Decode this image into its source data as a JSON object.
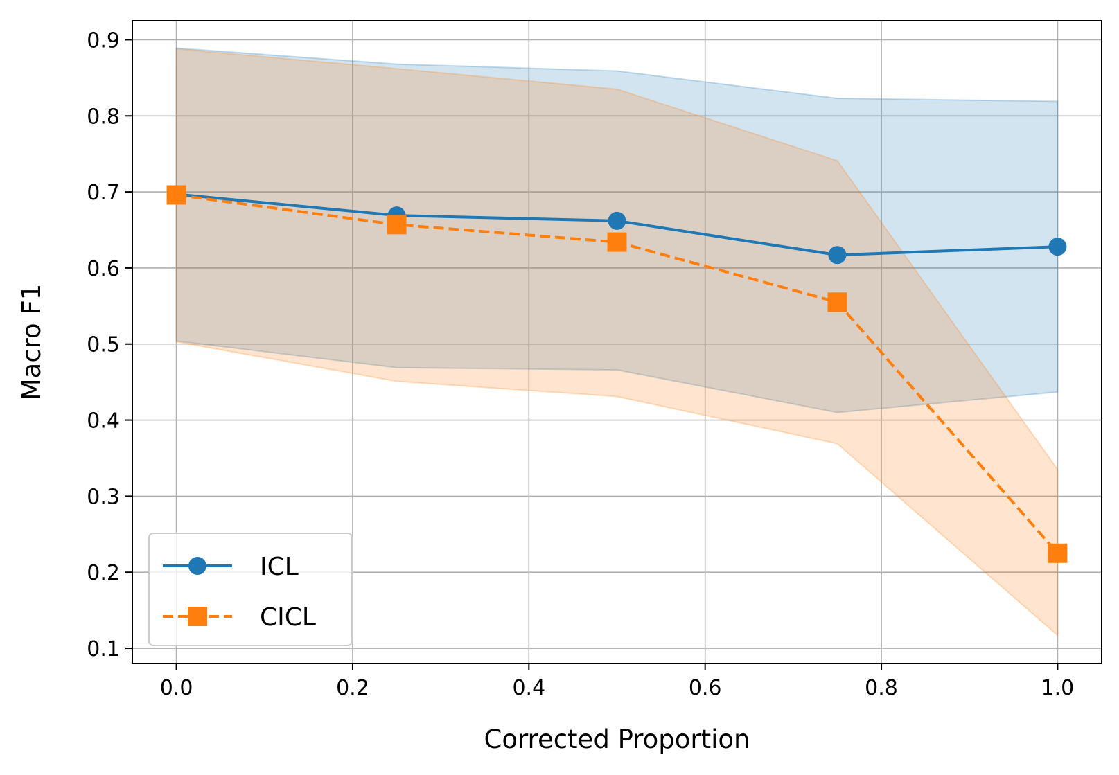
{
  "chart_data": {
    "type": "line",
    "title": "",
    "xlabel": "Corrected Proportion",
    "ylabel": "Macro F1",
    "xlim": [
      -0.05,
      1.05
    ],
    "ylim": [
      0.08,
      0.925
    ],
    "xticks": [
      0.0,
      0.2,
      0.4,
      0.6,
      0.8,
      1.0
    ],
    "xtick_labels": [
      "0.0",
      "0.2",
      "0.4",
      "0.6",
      "0.8",
      "1.0"
    ],
    "yticks": [
      0.1,
      0.2,
      0.3,
      0.4,
      0.5,
      0.6,
      0.7,
      0.8,
      0.9
    ],
    "ytick_labels": [
      "0.1",
      "0.2",
      "0.3",
      "0.4",
      "0.5",
      "0.6",
      "0.7",
      "0.8",
      "0.9"
    ],
    "grid": true,
    "legend_position": "lower-left",
    "x": [
      0.0,
      0.25,
      0.5,
      0.75,
      1.0
    ],
    "series": [
      {
        "name": "ICL",
        "values": [
          0.697,
          0.669,
          0.662,
          0.617,
          0.628
        ],
        "upper": [
          0.889,
          0.868,
          0.859,
          0.823,
          0.819
        ],
        "lower": [
          0.504,
          0.469,
          0.466,
          0.41,
          0.437
        ],
        "color": "#1f77b4",
        "marker": "circle",
        "linestyle": "solid"
      },
      {
        "name": "CICL",
        "values": [
          0.696,
          0.657,
          0.634,
          0.555,
          0.225
        ],
        "upper": [
          0.888,
          0.862,
          0.835,
          0.741,
          0.335
        ],
        "lower": [
          0.503,
          0.451,
          0.431,
          0.369,
          0.117
        ],
        "color": "#ff7f0e",
        "marker": "square",
        "linestyle": "dashed"
      }
    ]
  }
}
